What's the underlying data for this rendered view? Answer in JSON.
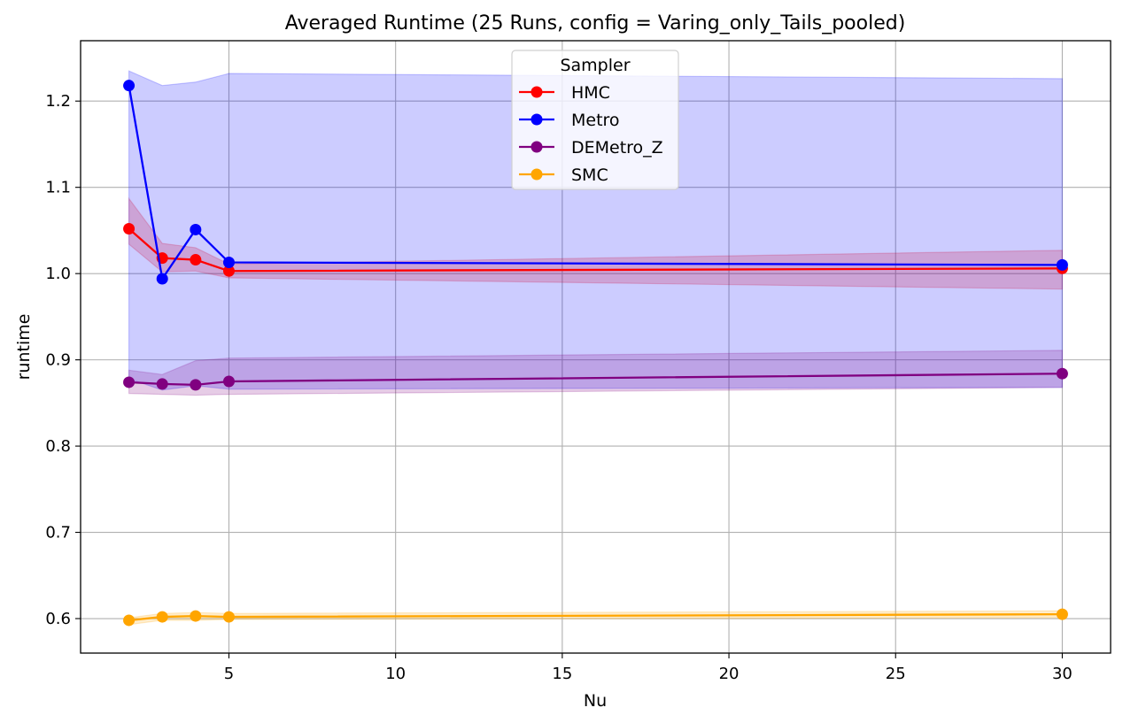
{
  "chart_data": {
    "type": "line",
    "title": "Averaged Runtime (25 Runs, config = Varing_only_Tails_pooled)",
    "xlabel": "Nu",
    "ylabel": "runtime",
    "xlim": [
      0.55,
      31.45
    ],
    "ylim": [
      0.56,
      1.27
    ],
    "xticks": [
      5,
      10,
      15,
      20,
      25,
      30
    ],
    "xtick_labels": [
      "5",
      "10",
      "15",
      "20",
      "25",
      "30"
    ],
    "yticks": [
      0.6,
      0.7,
      0.8,
      0.9,
      1.0,
      1.1,
      1.2
    ],
    "ytick_labels": [
      "0.6",
      "0.7",
      "0.8",
      "0.9",
      "1.0",
      "1.1",
      "1.2"
    ],
    "grid": true,
    "legend": {
      "title": "Sampler",
      "position": "top-center"
    },
    "x": [
      2,
      3,
      4,
      5,
      30
    ],
    "series": [
      {
        "name": "HMC",
        "color": "#ff0000",
        "values": [
          1.052,
          1.018,
          1.016,
          1.003,
          1.006
        ],
        "lower": [
          1.034,
          1.002,
          1.003,
          0.995,
          0.982
        ],
        "upper": [
          1.087,
          1.035,
          1.03,
          1.011,
          1.027
        ]
      },
      {
        "name": "Metro",
        "color": "#0000ff",
        "values": [
          1.218,
          0.994,
          1.051,
          1.013,
          1.01
        ],
        "lower": [
          0.878,
          0.865,
          0.87,
          0.866,
          0.868
        ],
        "upper": [
          1.235,
          1.218,
          1.222,
          1.232,
          1.226
        ]
      },
      {
        "name": "DEMetro_Z",
        "color": "#800080",
        "values": [
          0.874,
          0.872,
          0.871,
          0.875,
          0.884
        ],
        "lower": [
          0.861,
          0.86,
          0.859,
          0.86,
          0.868
        ],
        "upper": [
          0.888,
          0.883,
          0.899,
          0.902,
          0.911
        ]
      },
      {
        "name": "SMC",
        "color": "#ffa500",
        "values": [
          0.598,
          0.602,
          0.603,
          0.602,
          0.605
        ],
        "lower": [
          0.593,
          0.598,
          0.598,
          0.599,
          0.601
        ],
        "upper": [
          0.601,
          0.606,
          0.607,
          0.606,
          0.609
        ]
      }
    ]
  }
}
